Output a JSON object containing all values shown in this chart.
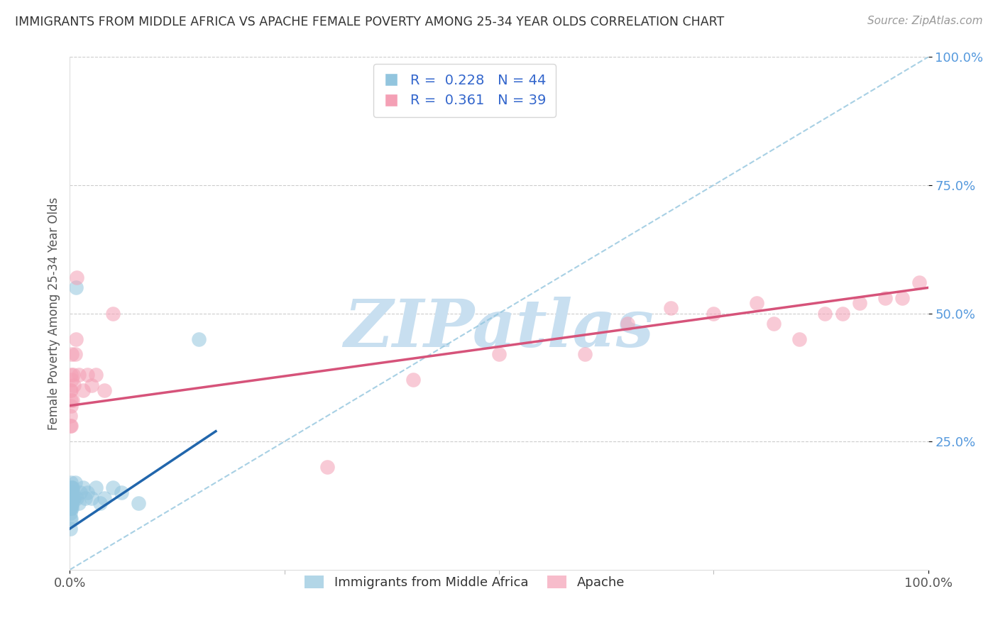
{
  "title": "IMMIGRANTS FROM MIDDLE AFRICA VS APACHE FEMALE POVERTY AMONG 25-34 YEAR OLDS CORRELATION CHART",
  "source": "Source: ZipAtlas.com",
  "ylabel": "Female Poverty Among 25-34 Year Olds",
  "R1": 0.228,
  "N1": 44,
  "R2": 0.361,
  "N2": 39,
  "blue_color": "#92c5de",
  "pink_color": "#f4a0b5",
  "blue_line_color": "#2166ac",
  "pink_line_color": "#d6537a",
  "dashed_line_color": "#92c5de",
  "watermark_text": "ZIPatlas",
  "watermark_color": "#c8dff0",
  "legend1_label": "Immigrants from Middle Africa",
  "legend2_label": "Apache",
  "blue_x": [
    0.0002,
    0.0003,
    0.0004,
    0.0005,
    0.0005,
    0.0006,
    0.0007,
    0.0008,
    0.0009,
    0.001,
    0.001,
    0.001,
    0.001,
    0.0012,
    0.0013,
    0.0015,
    0.0016,
    0.0017,
    0.0018,
    0.002,
    0.002,
    0.0022,
    0.0023,
    0.0025,
    0.003,
    0.003,
    0.004,
    0.005,
    0.006,
    0.007,
    0.008,
    0.01,
    0.012,
    0.015,
    0.018,
    0.02,
    0.025,
    0.03,
    0.035,
    0.04,
    0.05,
    0.06,
    0.08,
    0.15
  ],
  "blue_y": [
    0.1,
    0.12,
    0.08,
    0.13,
    0.15,
    0.11,
    0.14,
    0.12,
    0.1,
    0.13,
    0.15,
    0.17,
    0.13,
    0.14,
    0.12,
    0.13,
    0.16,
    0.14,
    0.15,
    0.12,
    0.15,
    0.13,
    0.16,
    0.14,
    0.13,
    0.16,
    0.15,
    0.14,
    0.17,
    0.55,
    0.14,
    0.13,
    0.15,
    0.16,
    0.14,
    0.15,
    0.14,
    0.16,
    0.13,
    0.14,
    0.16,
    0.15,
    0.13,
    0.45
  ],
  "pink_x": [
    0.0003,
    0.0005,
    0.0007,
    0.001,
    0.001,
    0.0012,
    0.0015,
    0.0017,
    0.002,
    0.002,
    0.003,
    0.004,
    0.005,
    0.006,
    0.007,
    0.008,
    0.01,
    0.015,
    0.02,
    0.025,
    0.03,
    0.04,
    0.05,
    0.3,
    0.4,
    0.5,
    0.6,
    0.65,
    0.7,
    0.75,
    0.8,
    0.82,
    0.85,
    0.88,
    0.9,
    0.92,
    0.95,
    0.97,
    0.99
  ],
  "pink_y": [
    0.3,
    0.35,
    0.28,
    0.32,
    0.38,
    0.33,
    0.35,
    0.28,
    0.37,
    0.42,
    0.33,
    0.38,
    0.36,
    0.42,
    0.45,
    0.57,
    0.38,
    0.35,
    0.38,
    0.36,
    0.38,
    0.35,
    0.5,
    0.2,
    0.37,
    0.42,
    0.42,
    0.48,
    0.51,
    0.5,
    0.52,
    0.48,
    0.45,
    0.5,
    0.5,
    0.52,
    0.53,
    0.53,
    0.56
  ],
  "blue_line_x": [
    0.0,
    0.17
  ],
  "blue_line_y": [
    0.08,
    0.27
  ],
  "pink_line_x": [
    0.0,
    1.0
  ],
  "pink_line_y": [
    0.32,
    0.55
  ],
  "dash_line_x": [
    0.0,
    1.0
  ],
  "dash_line_y": [
    0.0,
    1.0
  ],
  "xlim": [
    0.0,
    1.0
  ],
  "ylim": [
    0.0,
    1.0
  ],
  "xticks": [
    0.0,
    1.0
  ],
  "xticklabels": [
    "0.0%",
    "100.0%"
  ],
  "yticks": [
    0.25,
    0.5,
    0.75,
    1.0
  ],
  "yticklabels": [
    "25.0%",
    "50.0%",
    "75.0%",
    "100.0%"
  ]
}
